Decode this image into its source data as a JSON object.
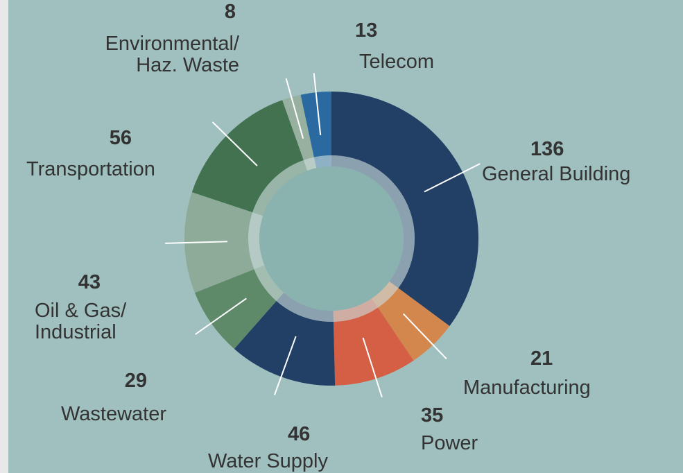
{
  "chart_data": {
    "type": "pie",
    "categories": [
      "General Building",
      "Manufacturing",
      "Power",
      "Water Supply",
      "Wastewater",
      "Oil & Gas/\nIndustrial",
      "Transportation",
      "Environmental/\nHaz. Waste",
      "Telecom"
    ],
    "values": [
      136,
      21,
      35,
      46,
      29,
      43,
      56,
      8,
      13
    ],
    "colors": [
      "#223f66",
      "#d4874c",
      "#d45f45",
      "#223f66",
      "#5e8a6a",
      "#8eab9a",
      "#42724f",
      "#97b09f",
      "#2a6aa0"
    ]
  }
}
